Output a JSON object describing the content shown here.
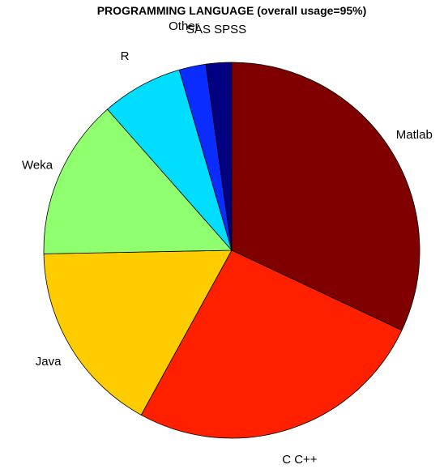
{
  "chart_data": {
    "type": "pie",
    "title": "PROGRAMMING LANGUAGE (overall usage=95%)",
    "slices": [
      {
        "label": "Matlab",
        "value": 32.0,
        "color": "#800000"
      },
      {
        "label": "C C++",
        "value": 26.0,
        "color": "#ff2000"
      },
      {
        "label": "Java",
        "value": 16.7,
        "color": "#ffcc00"
      },
      {
        "label": "Weka",
        "value": 13.8,
        "color": "#8fff70"
      },
      {
        "label": "R",
        "value": 7.0,
        "color": "#00ddff"
      },
      {
        "label": "Other",
        "value": 2.3,
        "color": "#0a2cff"
      },
      {
        "label": "SAS SPSS",
        "value": 2.2,
        "color": "#000080"
      }
    ],
    "start_angle_deg": 0,
    "direction": "clockwise",
    "legend": "none"
  }
}
